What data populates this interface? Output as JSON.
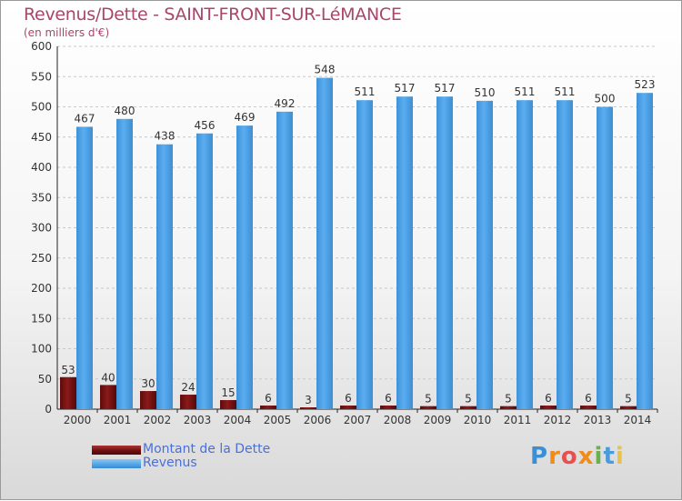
{
  "header": {
    "title": "Revenus/Dette - SAINT-FRONT-SUR-LéMANCE",
    "subtitle": "(en milliers d'€)"
  },
  "legend": {
    "debt_label": "Montant de la Dette",
    "revenue_label": "Revenus"
  },
  "logo": {
    "text": "Proxiti",
    "letters": [
      "P",
      "r",
      "o",
      "x",
      "i",
      "t",
      "i"
    ],
    "colors": [
      "#3a8fd6",
      "#f08c1c",
      "#e85050",
      "#f08c1c",
      "#6ab04c",
      "#4a9bd8",
      "#e8c24c"
    ]
  },
  "colors": {
    "debt": "#7a1010",
    "revenue": "#4fa3e6",
    "grid": "#c8c8c8",
    "axis": "#222222",
    "labels": "#333333"
  },
  "chart_data": {
    "type": "bar",
    "categories": [
      "2000",
      "2001",
      "2002",
      "2003",
      "2004",
      "2005",
      "2006",
      "2007",
      "2008",
      "2009",
      "2010",
      "2011",
      "2012",
      "2013",
      "2014"
    ],
    "series": [
      {
        "name": "Montant de la Dette",
        "values": [
          53,
          40,
          30,
          24,
          15,
          6,
          3,
          6,
          6,
          5,
          5,
          5,
          6,
          6,
          5
        ]
      },
      {
        "name": "Revenus",
        "values": [
          467,
          480,
          438,
          456,
          469,
          492,
          548,
          511,
          517,
          517,
          510,
          511,
          511,
          500,
          523
        ]
      }
    ],
    "ylim": [
      0,
      600
    ],
    "yticks": [
      0,
      50,
      100,
      150,
      200,
      250,
      300,
      350,
      400,
      450,
      500,
      550,
      600
    ],
    "grid": true
  }
}
